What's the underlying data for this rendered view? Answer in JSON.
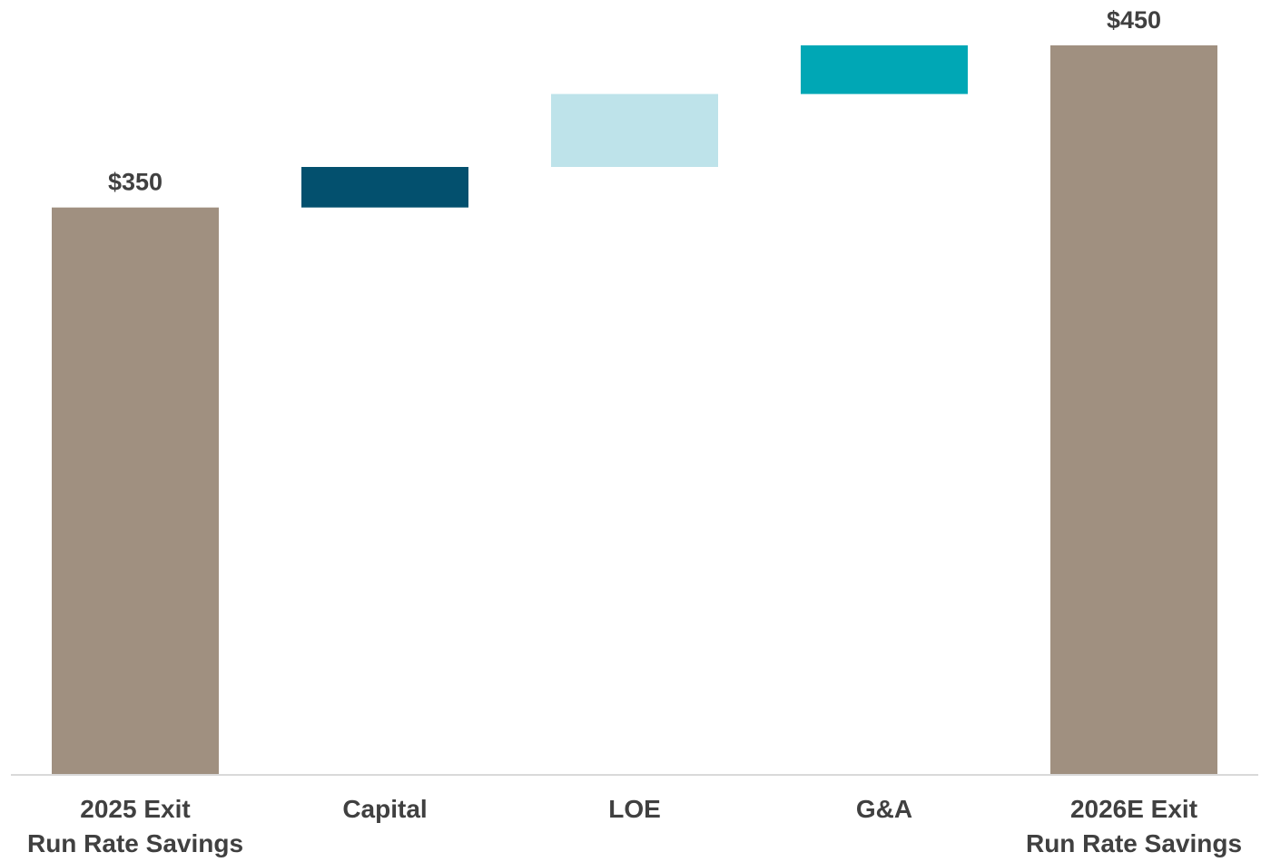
{
  "chart_data": {
    "type": "bar",
    "subtype": "waterfall",
    "title": "",
    "xlabel": "",
    "ylabel": "",
    "ylim": [
      0,
      450
    ],
    "grid": false,
    "legend": "none",
    "categories": [
      [
        "2025 Exit",
        "Run Rate Savings"
      ],
      [
        "Capital"
      ],
      [
        "LOE"
      ],
      [
        "G&A"
      ],
      [
        "2026E Exit",
        "Run Rate Savings"
      ]
    ],
    "bars": [
      {
        "kind": "total",
        "start": 0,
        "end": 350,
        "label": "$350",
        "color": "#A09080"
      },
      {
        "kind": "delta",
        "start": 350,
        "end": 375,
        "label": "",
        "color": "#03506E"
      },
      {
        "kind": "delta",
        "start": 375,
        "end": 420,
        "label": "",
        "color": "#BEE3EA"
      },
      {
        "kind": "delta",
        "start": 420,
        "end": 450,
        "label": "",
        "color": "#00A7B5"
      },
      {
        "kind": "total",
        "start": 0,
        "end": 450,
        "label": "$450",
        "color": "#A09080"
      }
    ]
  }
}
